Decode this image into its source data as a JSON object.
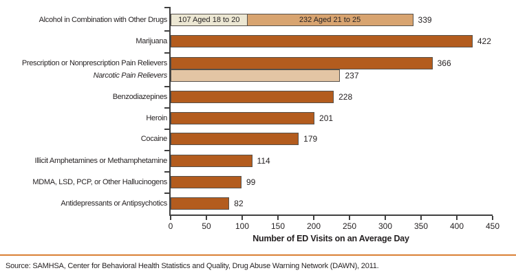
{
  "chart_data": {
    "type": "bar",
    "orientation": "horizontal",
    "xlabel": "Number of ED Visits on an Average Day",
    "xlim": [
      0,
      450
    ],
    "xticks": [
      0,
      50,
      100,
      150,
      200,
      250,
      300,
      350,
      400,
      450
    ],
    "grid": false,
    "rows": [
      {
        "label": "Alcohol in Combination with Other Drugs",
        "value": 339,
        "type": "segmented",
        "segments": [
          {
            "label": "107 Aged 18 to 20",
            "value": 107,
            "color": "#ece7d3"
          },
          {
            "label": "232 Aged 21 to 25",
            "value": 232,
            "color": "#d8a470"
          }
        ]
      },
      {
        "label": "Marijuana",
        "value": 422,
        "type": "dark"
      },
      {
        "label": "Prescription or Nonprescription Pain Relievers",
        "value": 366,
        "type": "dark"
      },
      {
        "label": "Narcotic Pain Relievers",
        "value": 237,
        "type": "light",
        "italic": true
      },
      {
        "label": "Benzodiazepines",
        "value": 228,
        "type": "dark"
      },
      {
        "label": "Heroin",
        "value": 201,
        "type": "dark"
      },
      {
        "label": "Cocaine",
        "value": 179,
        "type": "dark"
      },
      {
        "label": "Illicit Amphetamines or Methamphetamine",
        "value": 114,
        "type": "dark"
      },
      {
        "label": "MDMA, LSD, PCP, or Other Hallucinogens",
        "value": 99,
        "type": "dark"
      },
      {
        "label": "Antidepressants or Antipsychotics",
        "value": 82,
        "type": "dark"
      }
    ],
    "colors": {
      "dark": "#b35c1e",
      "light": "#e3c5a4",
      "border": "#55504a",
      "axis": "#3f3f3f"
    }
  },
  "separator_color": "#d97f33",
  "source": "Source: SAMHSA, Center for Behavioral Health Statistics and Quality, Drug Abuse Warning Network (DAWN), 2011."
}
